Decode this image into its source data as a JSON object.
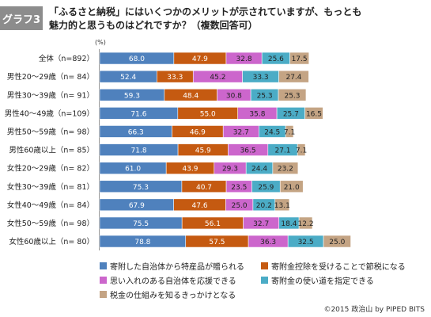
{
  "header": {
    "tag": "グラフ3",
    "title_line1": "「ふるさと納税」にはいくつかのメリットが示されていますが、もっとも",
    "title_line2": "魅力的と思うものはどれですか？（複数回答可）"
  },
  "footer": {
    "copyright": "©2015 政治山 by PIPED BITS"
  },
  "chart_data": {
    "type": "bar",
    "orientation": "horizontal",
    "stacked": true,
    "unit_label": "(%)",
    "categories": [
      "全体（n=892）",
      "男性20～29歳（n= 84）",
      "男性30～39歳（n= 91）",
      "男性40～49歳（n=109）",
      "男性50～59歳（n= 98）",
      "男性60歳以上（n= 85）",
      "女性20～29歳（n= 82）",
      "女性30～39歳（n= 81）",
      "女性40～49歳（n= 84）",
      "女性50～59歳（n= 98）",
      "女性60歳以上（n= 80）"
    ],
    "series": [
      {
        "name": "寄附した自治体から特産品が贈られる",
        "color": "#4f81bd",
        "values": [
          68.0,
          52.4,
          59.3,
          71.6,
          66.3,
          71.8,
          61.0,
          75.3,
          67.9,
          75.5,
          78.8
        ]
      },
      {
        "name": "寄附金控除を受けることで節税になる",
        "color": "#c55a11",
        "values": [
          47.9,
          33.3,
          48.4,
          55.0,
          46.9,
          45.9,
          43.9,
          40.7,
          47.6,
          56.1,
          57.5
        ]
      },
      {
        "name": "思い入れのある自治体を応援できる",
        "color": "#cc66cc",
        "values": [
          32.8,
          45.2,
          30.8,
          35.8,
          32.7,
          36.5,
          29.3,
          23.5,
          25.0,
          32.7,
          36.3
        ]
      },
      {
        "name": "寄附金の使い道を指定できる",
        "color": "#4bacc6",
        "values": [
          25.6,
          33.3,
          25.3,
          25.7,
          24.5,
          27.1,
          24.4,
          25.9,
          20.2,
          18.4,
          32.5
        ]
      },
      {
        "name": "税金の仕組みを知るきっかけとなる",
        "color": "#c4a484",
        "values": [
          17.5,
          27.4,
          25.3,
          16.5,
          7.1,
          7.1,
          23.2,
          21.0,
          13.1,
          12.2,
          25.0
        ]
      }
    ],
    "legend_placement": "bottom",
    "grid": false
  }
}
